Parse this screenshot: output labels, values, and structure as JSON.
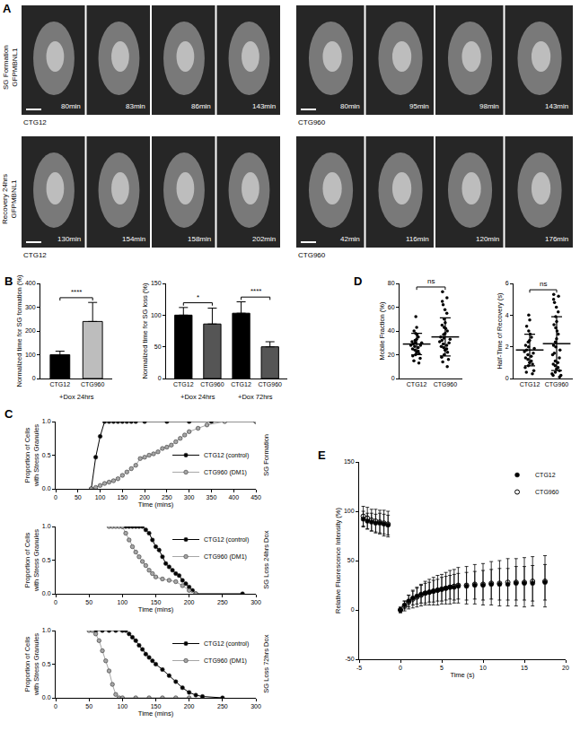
{
  "image_panel": {
    "panel": "A",
    "rows": [
      {
        "label": [
          "SG Formation",
          "GFPMBNL1"
        ],
        "strips": [
          {
            "name": "CTG12",
            "frames": [
              "80min",
              "83min",
              "86min",
              "143min"
            ]
          },
          {
            "name": "CTG960",
            "frames": [
              "80min",
              "95min",
              "98min",
              "143min"
            ]
          }
        ]
      },
      {
        "label": [
          "Recovery 24hrs",
          "GFPMBNL1"
        ],
        "strips": [
          {
            "name": "CTG12",
            "frames": [
              "130min",
              "154min",
              "158min",
              "202min"
            ]
          },
          {
            "name": "CTG960",
            "frames": [
              "42min",
              "116min",
              "120min",
              "176min"
            ]
          }
        ]
      }
    ]
  },
  "chart_data": [
    {
      "panel": "B",
      "type": "bar",
      "ylabel": "Normalized time for SG formation (%)",
      "categories": [
        "CTG12",
        "CTG960"
      ],
      "values": [
        100,
        240
      ],
      "errors": [
        15,
        80
      ],
      "colors": [
        "#000000",
        "#bdbdbd"
      ],
      "groups": [
        {
          "label": "+Dox 24hrs",
          "from": 0,
          "to": 1
        }
      ],
      "significance": [
        {
          "from": 0,
          "to": 1,
          "text": "****"
        }
      ],
      "ylim": [
        0,
        400
      ],
      "yticks": [
        0,
        100,
        200,
        300,
        400
      ],
      "grid": false
    },
    {
      "type": "bar",
      "ylabel": "Normalized time for SG loss (%)",
      "categories": [
        "CTG12",
        "CTG960",
        "CTG12",
        "CTG960"
      ],
      "values": [
        100,
        86,
        103,
        50
      ],
      "errors": [
        12,
        25,
        18,
        8
      ],
      "colors": [
        "#000000",
        "#555555",
        "#000000",
        "#555555"
      ],
      "groups": [
        {
          "label": "+Dox 24hrs",
          "from": 0,
          "to": 1
        },
        {
          "label": "+Dox 72hrs",
          "from": 2,
          "to": 3
        }
      ],
      "significance": [
        {
          "from": 0,
          "to": 1,
          "text": "*"
        },
        {
          "from": 2,
          "to": 3,
          "text": "****"
        }
      ],
      "ylim": [
        0,
        150
      ],
      "yticks": [
        0,
        50,
        100,
        150
      ],
      "grid": false
    },
    {
      "panel": "D",
      "type": "strip",
      "ylabel": "Mobile Fraction (%)",
      "categories": [
        "CTG12",
        "CTG960"
      ],
      "points": [
        [
          52,
          43,
          40,
          38,
          37,
          35,
          33,
          32,
          31,
          30,
          30,
          29,
          28,
          28,
          27,
          26,
          25,
          24,
          23,
          22,
          21,
          20,
          19,
          17,
          15,
          13
        ],
        [
          73,
          68,
          65,
          62,
          58,
          55,
          50,
          47,
          45,
          43,
          42,
          40,
          38,
          37,
          35,
          34,
          33,
          32,
          31,
          30,
          29,
          28,
          27,
          26,
          25,
          24,
          22,
          20,
          18,
          16,
          14,
          10
        ]
      ],
      "mean": [
        29,
        35
      ],
      "sd": [
        9,
        16
      ],
      "color": "#000000",
      "significance": [
        {
          "from": 0,
          "to": 1,
          "text": "ns"
        }
      ],
      "ylim": [
        0,
        80
      ],
      "yticks": [
        0,
        20,
        40,
        60,
        80
      ],
      "grid": false
    },
    {
      "type": "strip",
      "ylabel": "Half-Time of Recovery (s)",
      "categories": [
        "CTG12",
        "CTG960"
      ],
      "points": [
        [
          4.0,
          3.7,
          3.3,
          3.0,
          2.8,
          2.6,
          2.4,
          2.3,
          2.1,
          2.0,
          1.9,
          1.8,
          1.7,
          1.6,
          1.5,
          1.4,
          1.3,
          1.2,
          1.1,
          1.0,
          0.9,
          0.8,
          0.7,
          0.5,
          0.4,
          0.3
        ],
        [
          5.3,
          5.2,
          5.0,
          4.8,
          4.5,
          4.2,
          3.9,
          3.6,
          3.4,
          3.2,
          3.0,
          2.8,
          2.5,
          2.3,
          2.1,
          2.0,
          1.8,
          1.6,
          1.5,
          1.3,
          1.1,
          1.0,
          0.9,
          0.8,
          0.7,
          0.6,
          0.5,
          0.4,
          0.3,
          0.2,
          0.2,
          0.1
        ]
      ],
      "mean": [
        1.8,
        2.2
      ],
      "sd": [
        1.0,
        1.7
      ],
      "color": "#000000",
      "significance": [
        {
          "from": 0,
          "to": 1,
          "text": "ns"
        }
      ],
      "ylim": [
        0,
        6
      ],
      "yticks": [
        0,
        2,
        4,
        6
      ],
      "grid": false
    },
    {
      "panel": "C",
      "type": "line",
      "side_label": "SG Formation",
      "xlabel": "Time (mins)",
      "ylabel": [
        "Proportion of Cells",
        "with Stress Granules"
      ],
      "series": [
        {
          "name": "CTG12 (control)",
          "color": "#000000",
          "marker": "circle",
          "x": [
            80,
            90,
            100,
            110,
            120,
            130,
            140,
            150,
            160,
            170,
            180,
            200,
            250,
            300,
            350,
            450
          ],
          "values": [
            0,
            0.47,
            0.78,
            1,
            1,
            1,
            1,
            1,
            1,
            1,
            1,
            1,
            1,
            1,
            1,
            1
          ]
        },
        {
          "name": "CTG960 (DM1)",
          "color": "#a6a6a6",
          "marker": "circle",
          "x": [
            80,
            90,
            100,
            110,
            120,
            130,
            140,
            150,
            160,
            170,
            180,
            190,
            200,
            210,
            220,
            230,
            240,
            250,
            260,
            270,
            280,
            290,
            300,
            320,
            340,
            380,
            450
          ],
          "values": [
            0,
            0.02,
            0.05,
            0.08,
            0.1,
            0.12,
            0.15,
            0.2,
            0.25,
            0.3,
            0.35,
            0.45,
            0.47,
            0.5,
            0.52,
            0.55,
            0.6,
            0.62,
            0.65,
            0.7,
            0.75,
            0.8,
            0.85,
            0.9,
            0.95,
            1,
            1
          ]
        }
      ],
      "legend": "bottom right",
      "xlim": [
        0,
        450
      ],
      "xticks": [
        0,
        50,
        100,
        150,
        200,
        250,
        300,
        350,
        400,
        450
      ],
      "ylim": [
        0,
        1
      ],
      "yticks": [
        {
          "value": 0,
          "label": "0.0"
        },
        {
          "value": 0.5,
          "label": "0.5"
        },
        {
          "value": 1,
          "label": "1.0"
        }
      ],
      "grid": false
    },
    {
      "type": "line",
      "side_label": "SG Loss 24hrs Dox",
      "xlabel": "Time (mins)",
      "ylabel": [
        "Proportion of Cells",
        "with Stress Granules"
      ],
      "series": [
        {
          "name": "CTG12 (control)",
          "color": "#000000",
          "marker": "circle",
          "x": [
            100,
            105,
            110,
            115,
            120,
            125,
            130,
            135,
            140,
            145,
            150,
            155,
            160,
            165,
            170,
            175,
            180,
            185,
            190,
            195,
            200,
            205,
            210,
            280
          ],
          "values": [
            1,
            1,
            1,
            1,
            1,
            1,
            1,
            0.95,
            0.9,
            0.8,
            0.7,
            0.65,
            0.55,
            0.45,
            0.4,
            0.35,
            0.3,
            0.27,
            0.2,
            0.15,
            0.1,
            0.05,
            0,
            0
          ]
        },
        {
          "name": "CTG960 (DM1)",
          "color": "#a6a6a6",
          "marker": "circle",
          "x": [
            80,
            85,
            90,
            95,
            100,
            105,
            110,
            115,
            120,
            125,
            130,
            135,
            140,
            145,
            150,
            160,
            170,
            180,
            190,
            200,
            210
          ],
          "values": [
            1,
            1,
            1,
            1,
            1,
            0.9,
            0.8,
            0.7,
            0.62,
            0.55,
            0.48,
            0.42,
            0.35,
            0.3,
            0.25,
            0.22,
            0.2,
            0.18,
            0.12,
            0.05,
            0
          ]
        }
      ],
      "legend": "top right",
      "xlim": [
        0,
        300
      ],
      "xticks": [
        0,
        50,
        100,
        150,
        200,
        250,
        300
      ],
      "ylim": [
        0,
        1
      ],
      "yticks": [
        {
          "value": 0,
          "label": "0.0"
        },
        {
          "value": 0.5,
          "label": "0.5"
        },
        {
          "value": 1,
          "label": "1.0"
        }
      ],
      "grid": false
    },
    {
      "type": "line",
      "side_label": "SG Loss 72hrs Dox",
      "xlabel": "Time (mins)",
      "ylabel": [
        "Proportion of Cells",
        "with Stress Granules"
      ],
      "series": [
        {
          "name": "CTG12 (control)",
          "color": "#000000",
          "marker": "circle",
          "x": [
            60,
            70,
            80,
            90,
            100,
            105,
            110,
            115,
            120,
            125,
            130,
            135,
            140,
            145,
            150,
            160,
            170,
            180,
            190,
            200,
            210,
            220,
            250
          ],
          "values": [
            1,
            1,
            1,
            1,
            1,
            1,
            0.95,
            0.9,
            0.85,
            0.78,
            0.72,
            0.65,
            0.6,
            0.55,
            0.5,
            0.42,
            0.33,
            0.24,
            0.15,
            0.08,
            0.04,
            0.02,
            0
          ]
        },
        {
          "name": "CTG960 (DM1)",
          "color": "#a6a6a6",
          "marker": "circle",
          "x": [
            50,
            55,
            60,
            65,
            70,
            75,
            80,
            85,
            90,
            95,
            100,
            120,
            140,
            160,
            180,
            200
          ],
          "values": [
            1,
            1,
            0.95,
            0.85,
            0.7,
            0.55,
            0.4,
            0.2,
            0.05,
            0,
            0,
            0,
            0,
            0,
            0,
            0
          ]
        }
      ],
      "legend": "top right",
      "xlim": [
        0,
        300
      ],
      "xticks": [
        0,
        50,
        100,
        150,
        200,
        250,
        300
      ],
      "ylim": [
        0,
        1
      ],
      "yticks": [
        {
          "value": 0,
          "label": "0.0"
        },
        {
          "value": 0.5,
          "label": "0.5"
        },
        {
          "value": 1,
          "label": "1.0"
        }
      ],
      "grid": false
    },
    {
      "panel": "E",
      "type": "scatter",
      "xlabel": "Time (s)",
      "ylabel": "Relative Fluorescence Intensity (%)",
      "series": [
        {
          "name": "CTG12",
          "color": "#000000",
          "marker": "circle",
          "x": [
            -4.5,
            -4,
            -3.5,
            -3,
            -2.5,
            -2,
            -1.5,
            0,
            0.5,
            1,
            1.5,
            2,
            2.5,
            3,
            3.5,
            4,
            4.5,
            5,
            5.5,
            6,
            6.5,
            7,
            8,
            9,
            10,
            11,
            12,
            13,
            14,
            15,
            16,
            17.5
          ],
          "values": [
            92,
            90,
            89,
            88,
            88,
            87,
            86,
            0,
            5,
            9,
            12,
            14,
            16,
            17,
            18,
            19,
            20,
            21,
            22,
            23,
            23,
            24,
            24,
            25,
            25,
            26,
            26,
            26,
            27,
            27,
            27,
            28
          ],
          "errors": [
            8,
            8,
            9,
            9,
            10,
            10,
            10,
            2,
            4,
            6,
            7,
            8,
            9,
            10,
            10,
            11,
            11,
            12,
            12,
            12,
            13,
            13,
            14,
            14,
            15,
            15,
            16,
            16,
            17,
            17,
            18,
            18
          ]
        },
        {
          "name": "CTG960",
          "color": "#000000",
          "marker": "circle-open",
          "x": [
            -4.5,
            -4,
            -3.5,
            -3,
            -2.5,
            -2,
            -1.5,
            0,
            0.5,
            1,
            1.5,
            2,
            2.5,
            3,
            3.5,
            4,
            4.5,
            5,
            5.5,
            6,
            6.5,
            7,
            8,
            9,
            10,
            11,
            12,
            13,
            14,
            15,
            16,
            17.5
          ],
          "values": [
            95,
            93,
            91,
            90,
            89,
            88,
            87,
            0,
            4,
            8,
            11,
            13,
            15,
            17,
            18,
            19,
            20,
            21,
            22,
            23,
            24,
            25,
            25,
            26,
            26,
            27,
            27,
            28,
            28,
            28,
            29,
            29
          ],
          "errors": [
            10,
            11,
            11,
            12,
            12,
            13,
            13,
            3,
            5,
            7,
            9,
            10,
            11,
            12,
            13,
            14,
            15,
            15,
            16,
            17,
            17,
            18,
            19,
            20,
            21,
            22,
            23,
            24,
            24,
            25,
            25,
            26
          ]
        }
      ],
      "legend": "top right",
      "xlim": [
        -5,
        20
      ],
      "xticks": [
        -5,
        0,
        5,
        10,
        15,
        20
      ],
      "ylim": [
        -50,
        150
      ],
      "yticks": [
        -50,
        0,
        50,
        100,
        150
      ],
      "grid": false
    }
  ]
}
